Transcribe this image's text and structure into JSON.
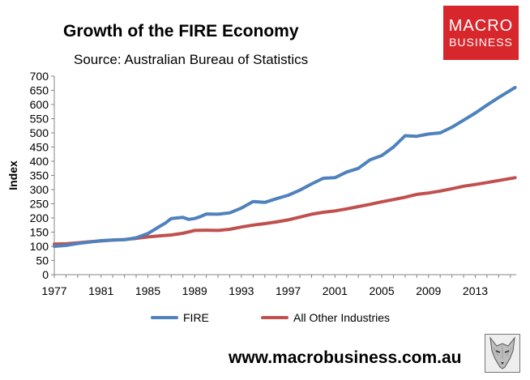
{
  "chart_data": {
    "type": "line",
    "title": "Growth of the FIRE Economy",
    "subtitle": "Source: Australian Bureau of Statistics",
    "xlabel": "",
    "ylabel": "Index",
    "xlim": [
      1977,
      2016.5
    ],
    "ylim": [
      0,
      700
    ],
    "yticks": [
      0,
      50,
      100,
      150,
      200,
      250,
      300,
      350,
      400,
      450,
      500,
      550,
      600,
      650,
      700
    ],
    "xticks": [
      "1977",
      "1981",
      "1985",
      "1989",
      "1993",
      "1997",
      "2001",
      "2005",
      "2009",
      "2013"
    ],
    "grid": false,
    "legend_position": "bottom",
    "series": [
      {
        "name": "FIRE",
        "color": "#4f81bd",
        "x": [
          1977,
          1978,
          1979,
          1980,
          1981,
          1982,
          1983,
          1984,
          1985,
          1986,
          1986.5,
          1987,
          1988,
          1988.5,
          1989,
          1989.5,
          1990,
          1991,
          1992,
          1993,
          1994,
          1995,
          1996,
          1997,
          1998,
          1999,
          2000,
          2001,
          2002,
          2003,
          2004,
          2005,
          2006,
          2007,
          2008,
          2009,
          2010,
          2011,
          2012,
          2013,
          2014,
          2015,
          2016.4
        ],
        "values": [
          100,
          103,
          110,
          115,
          120,
          122,
          123,
          130,
          145,
          170,
          182,
          198,
          202,
          195,
          198,
          205,
          214,
          213,
          218,
          235,
          258,
          255,
          268,
          280,
          298,
          320,
          340,
          342,
          362,
          375,
          405,
          420,
          450,
          490,
          488,
          496,
          500,
          520,
          545,
          570,
          598,
          625,
          660
        ]
      },
      {
        "name": "All Other Industries",
        "color": "#c0504d",
        "x": [
          1977,
          1978,
          1979,
          1980,
          1981,
          1982,
          1983,
          1984,
          1985,
          1986,
          1987,
          1988,
          1989,
          1990,
          1991,
          1992,
          1993,
          1994,
          1995,
          1996,
          1997,
          1998,
          1999,
          2000,
          2001,
          2002,
          2003,
          2004,
          2005,
          2006,
          2007,
          2008,
          2009,
          2010,
          2011,
          2012,
          2013,
          2014,
          2015,
          2016.4
        ],
        "values": [
          108,
          109,
          112,
          116,
          119,
          122,
          124,
          128,
          133,
          137,
          140,
          146,
          156,
          157,
          156,
          160,
          168,
          175,
          180,
          186,
          193,
          203,
          213,
          220,
          225,
          232,
          240,
          248,
          257,
          265,
          273,
          283,
          288,
          295,
          303,
          312,
          318,
          325,
          332,
          342
        ]
      }
    ]
  },
  "branding": {
    "logo_line1": "MACRO",
    "logo_line2": "BUSINESS",
    "logo_color": "#d7262c",
    "url": "www.macrobusiness.com.au"
  }
}
